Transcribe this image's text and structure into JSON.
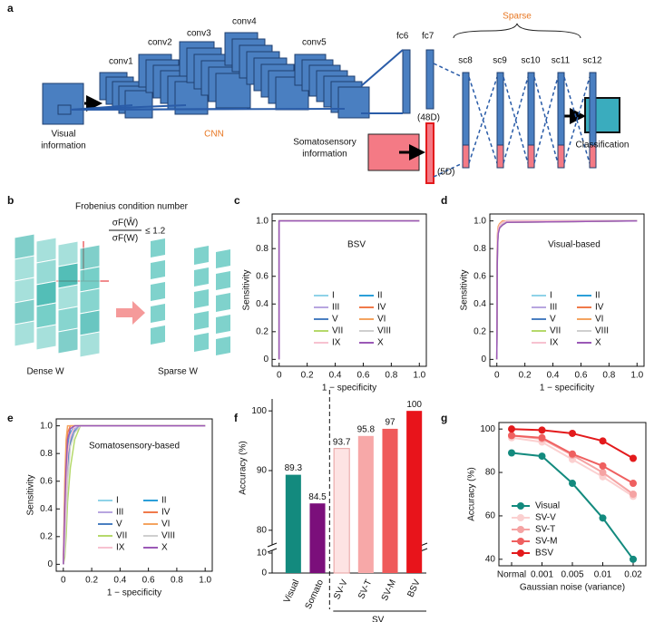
{
  "panels": [
    "a",
    "b",
    "c",
    "d",
    "e",
    "f",
    "g"
  ],
  "diagram": {
    "conv_labels": [
      "conv1",
      "conv2",
      "conv3",
      "conv4",
      "conv5"
    ],
    "fc_labels": [
      "fc6",
      "fc7"
    ],
    "sparse_label": "Sparse",
    "sc_labels": [
      "sc8",
      "sc9",
      "sc10",
      "sc11",
      "sc12"
    ],
    "cnn_label": "CNN",
    "visual_label": [
      "Visual",
      "information"
    ],
    "somato_label": [
      "Somatosensory",
      "information"
    ],
    "dim_48": "(48D)",
    "dim_5": "(5D)",
    "classification": "Classification"
  },
  "pruning": {
    "title": "Frobenius condition number",
    "numerator": "σF(Ŵ)",
    "denominator": "σF(W)",
    "relation": "≤ 1.2",
    "dense": "Dense W",
    "sparse": "Sparse W"
  },
  "chart_data": [
    {
      "type": "roc",
      "annotation": "BSV",
      "xlabel": "1 − specificity",
      "ylabel": "Sensitivity",
      "xlim": [
        -0.05,
        1.05
      ],
      "ylim": [
        -0.05,
        1.05
      ],
      "xticks": [
        0,
        0.2,
        0.4,
        0.6,
        0.8,
        {
          "value": 1,
          "label": "1.0"
        }
      ],
      "yticks": [
        0,
        0.2,
        0.4,
        0.6,
        0.8,
        {
          "value": 1,
          "label": "1.0"
        }
      ],
      "series": [
        {
          "name": "I",
          "color": "#8fd3e8",
          "x": [
            0,
            0,
            1
          ],
          "values": [
            0,
            1,
            1
          ]
        },
        {
          "name": "II",
          "color": "#2b9fd9",
          "x": [
            0,
            0,
            1
          ],
          "values": [
            0,
            1,
            1
          ]
        },
        {
          "name": "III",
          "color": "#b8a6e0",
          "x": [
            0,
            0,
            1
          ],
          "values": [
            0,
            1,
            1
          ]
        },
        {
          "name": "IV",
          "color": "#f07a4a",
          "x": [
            0,
            0,
            1
          ],
          "values": [
            0,
            1,
            1
          ]
        },
        {
          "name": "V",
          "color": "#4a7fc1",
          "x": [
            0,
            0,
            1
          ],
          "values": [
            0,
            1,
            1
          ]
        },
        {
          "name": "VI",
          "color": "#f4a460",
          "x": [
            0,
            0,
            1
          ],
          "values": [
            0,
            1,
            1
          ]
        },
        {
          "name": "VII",
          "color": "#b5d96b",
          "x": [
            0,
            0,
            1
          ],
          "values": [
            0,
            1,
            1
          ]
        },
        {
          "name": "VIII",
          "color": "#cfcfcf",
          "x": [
            0,
            0,
            1
          ],
          "values": [
            0,
            1,
            1
          ]
        },
        {
          "name": "IX",
          "color": "#f7c2d0",
          "x": [
            0,
            0,
            1
          ],
          "values": [
            0,
            1,
            1
          ]
        },
        {
          "name": "X",
          "color": "#9b59b6",
          "x": [
            0,
            0,
            1
          ],
          "values": [
            0,
            1,
            1
          ]
        }
      ]
    },
    {
      "type": "roc",
      "annotation": "Visual-based",
      "xlabel": "1 − specificity",
      "ylabel": "Sensitivity",
      "xlim": [
        -0.05,
        1.05
      ],
      "ylim": [
        -0.05,
        1.05
      ],
      "xticks": [
        0,
        0.2,
        0.4,
        0.6,
        0.8,
        {
          "value": 1,
          "label": "1.0"
        }
      ],
      "yticks": [
        0,
        0.2,
        0.4,
        0.6,
        0.8,
        {
          "value": 1,
          "label": "1.0"
        }
      ],
      "series": [
        {
          "name": "I",
          "color": "#8fd3e8",
          "x": [
            0,
            0.003,
            0.006,
            0.01,
            0.02,
            0.04,
            0.07,
            1
          ],
          "values": [
            0,
            0.75,
            0.88,
            0.93,
            0.96,
            0.98,
            1,
            1
          ]
        },
        {
          "name": "II",
          "color": "#2b9fd9",
          "x": [
            0,
            0.003,
            0.006,
            0.01,
            0.02,
            0.04,
            0.07,
            1
          ],
          "values": [
            0,
            0.8,
            0.9,
            0.95,
            0.97,
            0.99,
            1,
            1
          ]
        },
        {
          "name": "III",
          "color": "#b8a6e0",
          "x": [
            0,
            0.003,
            0.006,
            0.01,
            0.02,
            0.04,
            0.07,
            1
          ],
          "values": [
            0,
            0.7,
            0.85,
            0.92,
            0.95,
            0.97,
            0.99,
            1
          ]
        },
        {
          "name": "IV",
          "color": "#f07a4a",
          "x": [
            0,
            0.003,
            0.006,
            0.01,
            0.02,
            0.04,
            0.07,
            1
          ],
          "values": [
            0,
            0.82,
            0.92,
            0.96,
            0.98,
            0.99,
            1,
            1
          ]
        },
        {
          "name": "V",
          "color": "#4a7fc1",
          "x": [
            0,
            0.003,
            0.006,
            0.01,
            0.02,
            0.04,
            0.07,
            1
          ],
          "values": [
            0,
            0.78,
            0.89,
            0.94,
            0.97,
            0.98,
            1,
            1
          ]
        },
        {
          "name": "VI",
          "color": "#f4a460",
          "x": [
            0,
            0.003,
            0.006,
            0.01,
            0.02,
            0.04,
            0.07,
            1
          ],
          "values": [
            0,
            0.85,
            0.93,
            0.96,
            0.98,
            1,
            1,
            1
          ]
        },
        {
          "name": "VII",
          "color": "#b5d96b",
          "x": [
            0,
            0.003,
            0.006,
            0.01,
            0.02,
            0.04,
            0.07,
            1
          ],
          "values": [
            0,
            0.72,
            0.86,
            0.92,
            0.95,
            0.97,
            0.99,
            1
          ]
        },
        {
          "name": "VIII",
          "color": "#cfcfcf",
          "x": [
            0,
            0.003,
            0.006,
            0.01,
            0.02,
            0.04,
            0.07,
            1
          ],
          "values": [
            0,
            0.76,
            0.87,
            0.93,
            0.96,
            0.98,
            1,
            1
          ]
        },
        {
          "name": "IX",
          "color": "#f7c2d0",
          "x": [
            0,
            0.003,
            0.006,
            0.01,
            0.02,
            0.04,
            0.07,
            1
          ],
          "values": [
            0,
            0.8,
            0.9,
            0.94,
            0.97,
            0.99,
            1,
            1
          ]
        },
        {
          "name": "X",
          "color": "#9b59b6",
          "x": [
            0,
            0.003,
            0.006,
            0.01,
            0.02,
            0.04,
            0.07,
            1
          ],
          "values": [
            0,
            0.68,
            0.84,
            0.91,
            0.95,
            0.97,
            0.99,
            1
          ]
        }
      ]
    },
    {
      "type": "roc",
      "annotation": "Somatosensory-based",
      "xlabel": "1 − specificity",
      "ylabel": "Sensitivity",
      "xlim": [
        -0.05,
        1.05
      ],
      "ylim": [
        -0.05,
        1.05
      ],
      "xticks": [
        0,
        0.2,
        0.4,
        0.6,
        0.8,
        {
          "value": 1,
          "label": "1.0"
        }
      ],
      "yticks": [
        0,
        0.2,
        0.4,
        0.6,
        0.8,
        {
          "value": 1,
          "label": "1.0"
        }
      ],
      "series": [
        {
          "name": "I",
          "color": "#8fd3e8",
          "x": [
            0,
            0.01,
            0.02,
            0.03,
            0.05,
            0.08,
            0.12,
            1
          ],
          "values": [
            0,
            0.1,
            0.4,
            0.7,
            0.9,
            0.97,
            1,
            1
          ]
        },
        {
          "name": "II",
          "color": "#2b9fd9",
          "x": [
            0,
            0.01,
            0.02,
            0.03,
            0.05,
            0.08,
            0.12,
            1
          ],
          "values": [
            0,
            0.3,
            0.6,
            0.85,
            0.95,
            1,
            1,
            1
          ]
        },
        {
          "name": "III",
          "color": "#b8a6e0",
          "x": [
            0,
            0.01,
            0.02,
            0.03,
            0.05,
            0.08,
            0.12,
            1
          ],
          "values": [
            0,
            0.2,
            0.5,
            0.75,
            0.9,
            0.98,
            1,
            1
          ]
        },
        {
          "name": "IV",
          "color": "#f07a4a",
          "x": [
            0,
            0.01,
            0.02,
            0.03,
            0.05,
            0.08,
            0.12,
            1
          ],
          "values": [
            0,
            0.5,
            0.8,
            0.95,
            1,
            1,
            1,
            1
          ]
        },
        {
          "name": "V",
          "color": "#4a7fc1",
          "x": [
            0,
            0.01,
            0.02,
            0.03,
            0.05,
            0.08,
            0.12,
            1
          ],
          "values": [
            0,
            0.15,
            0.45,
            0.7,
            0.88,
            0.96,
            1,
            1
          ]
        },
        {
          "name": "VI",
          "color": "#f4a460",
          "x": [
            0,
            0.01,
            0.02,
            0.03,
            0.05,
            0.08,
            0.12,
            1
          ],
          "values": [
            0,
            0.6,
            0.9,
            1,
            1,
            1,
            1,
            1
          ]
        },
        {
          "name": "VII",
          "color": "#b5d96b",
          "x": [
            0,
            0.01,
            0.02,
            0.03,
            0.05,
            0.08,
            0.12,
            1
          ],
          "values": [
            0,
            0.05,
            0.2,
            0.45,
            0.7,
            0.9,
            1,
            1
          ]
        },
        {
          "name": "VIII",
          "color": "#cfcfcf",
          "x": [
            0,
            0.01,
            0.02,
            0.03,
            0.05,
            0.08,
            0.12,
            1
          ],
          "values": [
            0,
            0.1,
            0.35,
            0.6,
            0.85,
            0.95,
            1,
            1
          ]
        },
        {
          "name": "IX",
          "color": "#f7c2d0",
          "x": [
            0,
            0.01,
            0.02,
            0.03,
            0.05,
            0.08,
            0.12,
            1
          ],
          "values": [
            0,
            0.25,
            0.55,
            0.8,
            0.93,
            1,
            1,
            1
          ]
        },
        {
          "name": "X",
          "color": "#9b59b6",
          "x": [
            0,
            0.01,
            0.02,
            0.03,
            0.05,
            0.08,
            0.12,
            1
          ],
          "values": [
            0,
            0.4,
            0.7,
            0.9,
            0.98,
            1,
            1,
            1
          ]
        }
      ]
    },
    {
      "type": "bar",
      "ylabel": "Accuracy (%)",
      "group_label": "SV",
      "categories": [
        "Visual",
        "Somato",
        "SV-V",
        "SV-T",
        "SV-M",
        "BSV"
      ],
      "values": [
        89.3,
        84.5,
        93.7,
        95.8,
        97,
        100
      ],
      "colors": [
        "#138a7e",
        "#7b0f7b",
        "#fde3e3",
        "#f7a8a8",
        "#ef5a5a",
        "#e8141b"
      ],
      "ylim": [
        0,
        102
      ],
      "ybreak": [
        10,
        78
      ],
      "yticks": [
        0,
        10,
        80,
        90,
        100
      ]
    },
    {
      "type": "line",
      "xlabel": "Gaussian noise (variance)",
      "ylabel": "Accuracy (%)",
      "categories": [
        "Normal",
        "0.001",
        "0.005",
        "0.01",
        "0.02"
      ],
      "ylim": [
        37,
        103
      ],
      "yticks": [
        40,
        60,
        80,
        100
      ],
      "series": [
        {
          "name": "Visual",
          "color": "#138a7e",
          "values": [
            89,
            87.5,
            75,
            59,
            40
          ]
        },
        {
          "name": "SV-V",
          "color": "#fbd0d0",
          "values": [
            96,
            94,
            86,
            78,
            69
          ]
        },
        {
          "name": "SV-T",
          "color": "#f5a3a3",
          "values": [
            97,
            95.5,
            88,
            80,
            70
          ]
        },
        {
          "name": "SV-M",
          "color": "#ef6060",
          "values": [
            97,
            96,
            88.5,
            83,
            75
          ]
        },
        {
          "name": "BSV",
          "color": "#e31a1c",
          "values": [
            100,
            99.5,
            98,
            94.5,
            86.5
          ]
        }
      ]
    }
  ]
}
